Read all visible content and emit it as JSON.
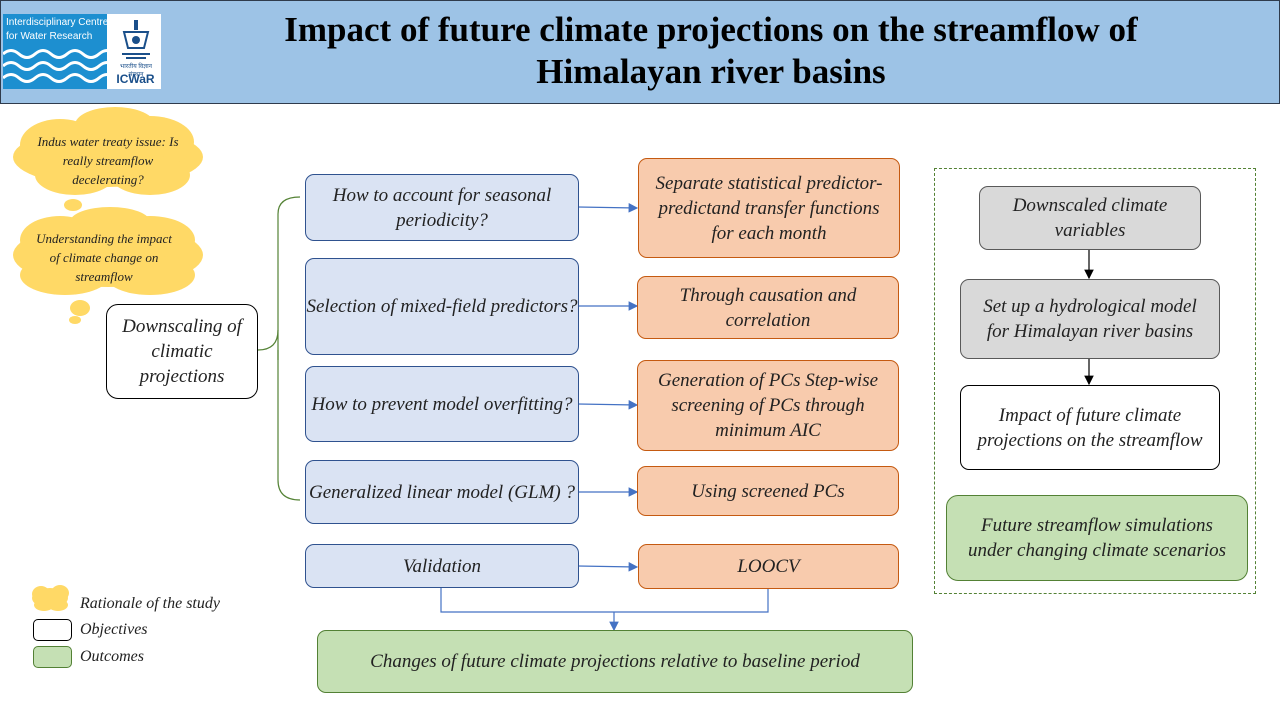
{
  "header": {
    "title_line1": "Impact of future climate projections on the streamflow of",
    "title_line2": "Himalayan river basins",
    "logo_text_line1": "Interdisciplinary Centre",
    "logo_text_line2": "for Water Research",
    "logo_abbrev": "ICWaR",
    "logo_hindi": "भारतीय विज्ञान संस्थान"
  },
  "rationale": {
    "cloud1": "Indus water treaty issue: Is really streamflow decelerating?",
    "cloud2": "Understanding the impact of climate change on streamflow"
  },
  "main_objective": "Downscaling of climatic projections",
  "questions": [
    "How to account for seasonal periodicity?",
    "Selection of mixed-field predictors?",
    "How to prevent model overfitting?",
    "Generalized linear model (GLM) ?",
    "Validation"
  ],
  "answers": [
    "Separate statistical predictor-predictand transfer functions for each month",
    "Through causation and correlation",
    "Generation of PCs Step-wise screening of PCs through minimum AIC",
    "Using screened PCs",
    "LOOCV"
  ],
  "outcome_bottom": "Changes of future climate projections relative to baseline period",
  "right_panel": {
    "step1": "Downscaled climate variables",
    "step2": "Set up a hydrological model for Himalayan river basins",
    "step3": "Impact of future climate projections on the streamflow",
    "outcome": "Future streamflow simulations under changing climate scenarios"
  },
  "legend": {
    "rationale": "Rationale of the study",
    "objectives": "Objectives",
    "outcomes": "Outcomes"
  },
  "colors": {
    "header_bg": "#9dc3e6",
    "question_fill": "#dae3f3",
    "answer_fill": "#f8cbad",
    "outcome_fill": "#c5e0b4",
    "gray_fill": "#d9d9d9",
    "cloud_fill": "#ffd966",
    "arrow": "#4472c4"
  },
  "icons": [
    "waves-logo-icon",
    "emblem-logo-icon",
    "thought-cloud-icon",
    "arrow-icon"
  ]
}
